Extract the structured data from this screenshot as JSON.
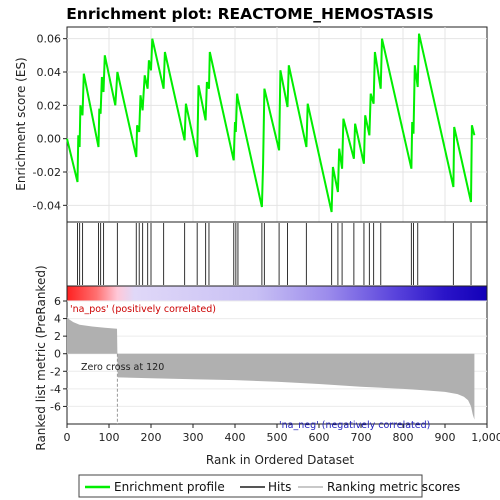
{
  "chart_data": {
    "type": "line",
    "title": "Enrichment plot: REACTOME_HEMOSTASIS",
    "xlabel": "Rank in Ordered Dataset",
    "xlim": [
      0,
      1000
    ],
    "x_ticks": [
      0,
      100,
      200,
      300,
      400,
      500,
      600,
      700,
      800,
      900,
      "1,000"
    ],
    "top_panel": {
      "ylabel": "Enrichment score (ES)",
      "ylim": [
        -0.05,
        0.067
      ],
      "y_ticks": [
        -0.04,
        -0.02,
        0.0,
        0.02,
        0.04,
        0.06
      ],
      "y_tick_labels": [
        "-0.04",
        "-0.02",
        "0.00",
        "0.02",
        "0.04",
        "0.06"
      ],
      "grid": true,
      "series": [
        {
          "name": "Enrichment profile",
          "color": "#00ee00",
          "x": [
            0,
            25,
            27,
            30,
            32,
            37,
            40,
            75,
            77,
            80,
            83,
            87,
            90,
            115,
            120,
            165,
            167,
            172,
            175,
            180,
            185,
            192,
            195,
            200,
            203,
            230,
            233,
            280,
            283,
            310,
            313,
            330,
            333,
            338,
            340,
            397,
            400,
            402,
            405,
            407,
            464,
            467,
            470,
            505,
            508,
            525,
            528,
            570,
            573,
            630,
            633,
            645,
            648,
            655,
            658,
            683,
            686,
            707,
            710,
            720,
            723,
            730,
            733,
            747,
            750,
            820,
            822,
            825,
            828,
            835,
            838,
            920,
            922,
            962,
            964,
            970
          ],
          "y": [
            0.0,
            -0.026,
            0.002,
            -0.005,
            0.02,
            0.014,
            0.039,
            -0.005,
            0.018,
            0.015,
            0.037,
            0.028,
            0.05,
            0.02,
            0.04,
            -0.011,
            0.008,
            0.004,
            0.026,
            0.017,
            0.038,
            0.03,
            0.047,
            0.041,
            0.06,
            0.03,
            0.052,
            -0.001,
            0.021,
            -0.011,
            0.032,
            0.011,
            0.034,
            0.03,
            0.052,
            -0.013,
            0.01,
            0.004,
            0.027,
            0.024,
            -0.041,
            -0.015,
            0.03,
            -0.007,
            0.041,
            0.019,
            0.044,
            -0.005,
            0.021,
            -0.044,
            -0.017,
            -0.032,
            -0.006,
            -0.018,
            0.012,
            -0.012,
            0.009,
            -0.015,
            0.014,
            0.002,
            0.027,
            0.021,
            0.052,
            0.03,
            0.06,
            -0.018,
            0.01,
            0.003,
            0.044,
            0.031,
            0.063,
            -0.029,
            0.007,
            -0.038,
            0.008,
            0.002
          ]
        }
      ]
    },
    "hits": {
      "name": "Hits",
      "positions": [
        25,
        30,
        37,
        75,
        80,
        87,
        120,
        165,
        172,
        180,
        192,
        200,
        230,
        280,
        310,
        330,
        338,
        397,
        402,
        407,
        464,
        470,
        505,
        525,
        570,
        630,
        645,
        655,
        683,
        707,
        720,
        730,
        747,
        820,
        825,
        835,
        920,
        962
      ]
    },
    "bottom_panel": {
      "ylabel": "Ranked list metric (PreRanked)",
      "ylim": [
        -8,
        6
      ],
      "y_ticks": [
        -6,
        -4,
        -2,
        0,
        2,
        4,
        6
      ],
      "y_tick_labels": [
        "-6",
        "-4",
        "-2",
        "0",
        "2",
        "4",
        "6"
      ],
      "series": [
        {
          "name": "Ranking metric scores",
          "color": "#b0b0b0",
          "x": [
            0,
            5,
            15,
            30,
            60,
            90,
            119,
            120,
            121,
            200,
            300,
            400,
            500,
            600,
            700,
            800,
            850,
            900,
            930,
            945,
            955,
            962,
            966,
            970
          ],
          "y": [
            4.2,
            3.9,
            3.6,
            3.3,
            3.1,
            2.95,
            2.85,
            0,
            -2.7,
            -2.8,
            -2.9,
            -3.0,
            -3.2,
            -3.45,
            -3.75,
            -4.0,
            -4.15,
            -4.35,
            -4.6,
            -4.9,
            -5.3,
            -6.0,
            -6.9,
            -7.5
          ]
        }
      ],
      "annotations": [
        {
          "text": "'na_pos' (positively correlated)",
          "color": "#cc0000"
        },
        {
          "text": "Zero cross at 120",
          "color": "#222222"
        },
        {
          "text": "'na_neg' (negatively correlated)",
          "color": "#2222bb"
        }
      ]
    },
    "legend": {
      "placement": "bottom",
      "entries": [
        {
          "label": "Enrichment profile",
          "color": "#00ee00"
        },
        {
          "label": "Hits",
          "color": "#555555"
        },
        {
          "label": "Ranking metric scores",
          "color": "#c8c8c8"
        }
      ]
    }
  }
}
